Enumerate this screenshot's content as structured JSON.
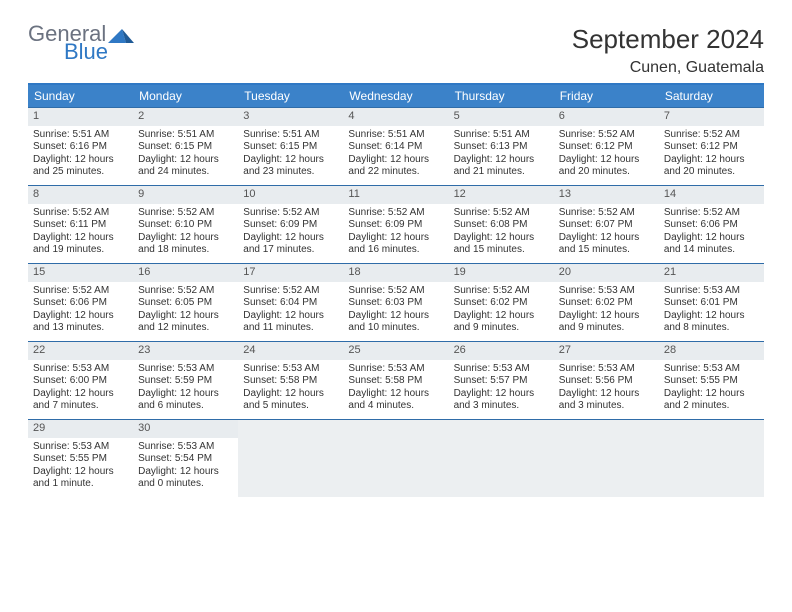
{
  "brand": {
    "line1": "General",
    "line2": "Blue"
  },
  "title": "September 2024",
  "location": "Cunen, Guatemala",
  "colors": {
    "header_bg": "#3b82c9",
    "header_rule": "#2f78c4",
    "daynum_bg": "#e8ecef",
    "empty_bg": "#eceff1",
    "text": "#333333",
    "brand_gray": "#6b7280",
    "brand_blue": "#2f78c4"
  },
  "weekdays": [
    "Sunday",
    "Monday",
    "Tuesday",
    "Wednesday",
    "Thursday",
    "Friday",
    "Saturday"
  ],
  "layout": {
    "start_offset": 0,
    "days_in_month": 30,
    "trailing_empty": 5
  },
  "days": [
    {
      "n": 1,
      "sunrise": "5:51 AM",
      "sunset": "6:16 PM",
      "daylight": "12 hours and 25 minutes."
    },
    {
      "n": 2,
      "sunrise": "5:51 AM",
      "sunset": "6:15 PM",
      "daylight": "12 hours and 24 minutes."
    },
    {
      "n": 3,
      "sunrise": "5:51 AM",
      "sunset": "6:15 PM",
      "daylight": "12 hours and 23 minutes."
    },
    {
      "n": 4,
      "sunrise": "5:51 AM",
      "sunset": "6:14 PM",
      "daylight": "12 hours and 22 minutes."
    },
    {
      "n": 5,
      "sunrise": "5:51 AM",
      "sunset": "6:13 PM",
      "daylight": "12 hours and 21 minutes."
    },
    {
      "n": 6,
      "sunrise": "5:52 AM",
      "sunset": "6:12 PM",
      "daylight": "12 hours and 20 minutes."
    },
    {
      "n": 7,
      "sunrise": "5:52 AM",
      "sunset": "6:12 PM",
      "daylight": "12 hours and 20 minutes."
    },
    {
      "n": 8,
      "sunrise": "5:52 AM",
      "sunset": "6:11 PM",
      "daylight": "12 hours and 19 minutes."
    },
    {
      "n": 9,
      "sunrise": "5:52 AM",
      "sunset": "6:10 PM",
      "daylight": "12 hours and 18 minutes."
    },
    {
      "n": 10,
      "sunrise": "5:52 AM",
      "sunset": "6:09 PM",
      "daylight": "12 hours and 17 minutes."
    },
    {
      "n": 11,
      "sunrise": "5:52 AM",
      "sunset": "6:09 PM",
      "daylight": "12 hours and 16 minutes."
    },
    {
      "n": 12,
      "sunrise": "5:52 AM",
      "sunset": "6:08 PM",
      "daylight": "12 hours and 15 minutes."
    },
    {
      "n": 13,
      "sunrise": "5:52 AM",
      "sunset": "6:07 PM",
      "daylight": "12 hours and 15 minutes."
    },
    {
      "n": 14,
      "sunrise": "5:52 AM",
      "sunset": "6:06 PM",
      "daylight": "12 hours and 14 minutes."
    },
    {
      "n": 15,
      "sunrise": "5:52 AM",
      "sunset": "6:06 PM",
      "daylight": "12 hours and 13 minutes."
    },
    {
      "n": 16,
      "sunrise": "5:52 AM",
      "sunset": "6:05 PM",
      "daylight": "12 hours and 12 minutes."
    },
    {
      "n": 17,
      "sunrise": "5:52 AM",
      "sunset": "6:04 PM",
      "daylight": "12 hours and 11 minutes."
    },
    {
      "n": 18,
      "sunrise": "5:52 AM",
      "sunset": "6:03 PM",
      "daylight": "12 hours and 10 minutes."
    },
    {
      "n": 19,
      "sunrise": "5:52 AM",
      "sunset": "6:02 PM",
      "daylight": "12 hours and 9 minutes."
    },
    {
      "n": 20,
      "sunrise": "5:53 AM",
      "sunset": "6:02 PM",
      "daylight": "12 hours and 9 minutes."
    },
    {
      "n": 21,
      "sunrise": "5:53 AM",
      "sunset": "6:01 PM",
      "daylight": "12 hours and 8 minutes."
    },
    {
      "n": 22,
      "sunrise": "5:53 AM",
      "sunset": "6:00 PM",
      "daylight": "12 hours and 7 minutes."
    },
    {
      "n": 23,
      "sunrise": "5:53 AM",
      "sunset": "5:59 PM",
      "daylight": "12 hours and 6 minutes."
    },
    {
      "n": 24,
      "sunrise": "5:53 AM",
      "sunset": "5:58 PM",
      "daylight": "12 hours and 5 minutes."
    },
    {
      "n": 25,
      "sunrise": "5:53 AM",
      "sunset": "5:58 PM",
      "daylight": "12 hours and 4 minutes."
    },
    {
      "n": 26,
      "sunrise": "5:53 AM",
      "sunset": "5:57 PM",
      "daylight": "12 hours and 3 minutes."
    },
    {
      "n": 27,
      "sunrise": "5:53 AM",
      "sunset": "5:56 PM",
      "daylight": "12 hours and 3 minutes."
    },
    {
      "n": 28,
      "sunrise": "5:53 AM",
      "sunset": "5:55 PM",
      "daylight": "12 hours and 2 minutes."
    },
    {
      "n": 29,
      "sunrise": "5:53 AM",
      "sunset": "5:55 PM",
      "daylight": "12 hours and 1 minute."
    },
    {
      "n": 30,
      "sunrise": "5:53 AM",
      "sunset": "5:54 PM",
      "daylight": "12 hours and 0 minutes."
    }
  ],
  "labels": {
    "sunrise": "Sunrise:",
    "sunset": "Sunset:",
    "daylight": "Daylight:"
  }
}
